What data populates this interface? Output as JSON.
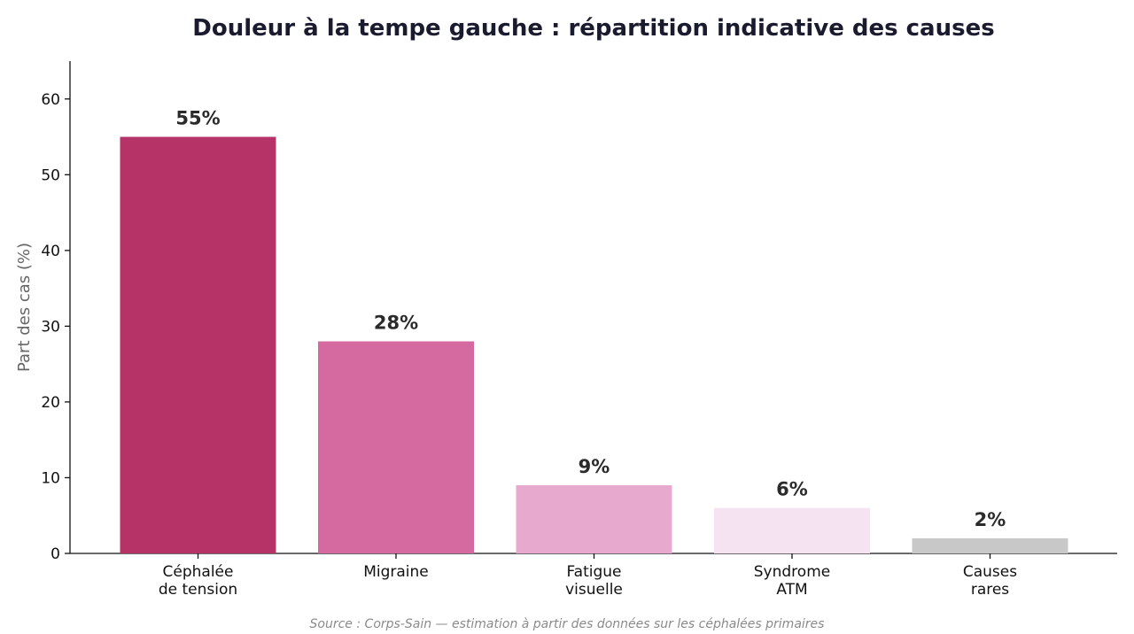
{
  "chart_data": {
    "type": "bar",
    "title": "Douleur à la tempe gauche : répartition indicative des causes",
    "xlabel": "",
    "ylabel": "Part des cas (%)",
    "ylim": [
      0,
      65
    ],
    "yticks": [
      0,
      10,
      20,
      30,
      40,
      50,
      60
    ],
    "grid": false,
    "categories": [
      [
        "Céphalée",
        "de tension"
      ],
      [
        "Migraine"
      ],
      [
        "Fatigue",
        "visuelle"
      ],
      [
        "Syndrome",
        "ATM"
      ],
      [
        "Causes",
        "rares"
      ]
    ],
    "values": [
      55,
      28,
      9,
      6,
      2
    ],
    "data_labels": [
      "55%",
      "28%",
      "9%",
      "6%",
      "2%"
    ],
    "colors": [
      "#b53366",
      "#d46a9f",
      "#e8a9cf",
      "#f5e3f2",
      "#c8c8c8"
    ]
  },
  "footer": {
    "source": "Source : Corps-Sain — estimation à partir des données sur les céphalées primaires"
  }
}
